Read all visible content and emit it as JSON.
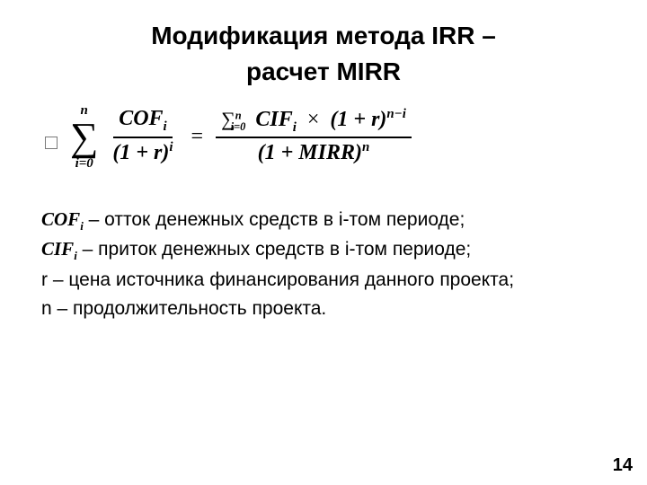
{
  "title": {
    "line1": "Модификация метода  IRR –",
    "line2": "расчет MIRR",
    "fontsize": 28,
    "weight": 700,
    "color": "#000000"
  },
  "formula": {
    "left_sum_upper": "n",
    "left_sum_lower": "i=0",
    "left_frac_num": "COFᵢ",
    "left_frac_num_var": "COF",
    "left_frac_num_sub": "i",
    "left_frac_den_base": "(1 + r)",
    "left_frac_den_sup": "i",
    "equals": "=",
    "right_num_sum_lower": "i=0",
    "right_num_sum_upper": "n",
    "right_num_var": "CIF",
    "right_num_sub": "i",
    "right_num_times": "×",
    "right_num_paren": "(1 + r)",
    "right_num_sup": "n−i",
    "right_den_paren": "(1 + MIRR)",
    "right_den_sup": "n",
    "font": "Cambria Math",
    "fontsize": 24,
    "color": "#000000"
  },
  "definitions": {
    "fontsize": 21,
    "items": [
      {
        "symbol": "COF",
        "sub": "i",
        "text": " – отток денежных средств в i-том периоде;"
      },
      {
        "symbol": "CIF",
        "sub": "i",
        "text": " – приток денежных средств в i-том периоде;"
      },
      {
        "symbol_plain": "r",
        "text": " – цена источника финансирования данного проекта;"
      },
      {
        "symbol_plain": "n",
        "text": " – продолжительность проекта."
      }
    ]
  },
  "page_number": "14",
  "colors": {
    "background": "#ffffff",
    "text": "#000000",
    "bullet_border": "#7a7a7a"
  }
}
